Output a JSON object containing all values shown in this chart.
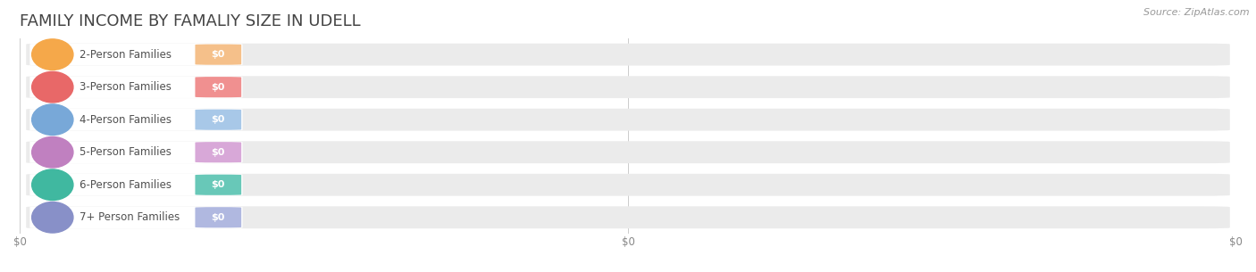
{
  "title": "FAMILY INCOME BY FAMALIY SIZE IN UDELL",
  "source": "Source: ZipAtlas.com",
  "categories": [
    "2-Person Families",
    "3-Person Families",
    "4-Person Families",
    "5-Person Families",
    "6-Person Families",
    "7+ Person Families"
  ],
  "values": [
    0,
    0,
    0,
    0,
    0,
    0
  ],
  "bar_colors": [
    "#f5c08a",
    "#f09090",
    "#a8c8e8",
    "#d8a8d8",
    "#68c8b8",
    "#b0b8e0"
  ],
  "dot_colors": [
    "#f5a84a",
    "#e86868",
    "#78a8d8",
    "#c080c0",
    "#40b8a0",
    "#8890c8"
  ],
  "bar_bg_color": "#ebebeb",
  "label_color": "#505050",
  "title_color": "#444444",
  "source_color": "#999999",
  "xlim_data": [
    0,
    1
  ],
  "bar_height": 0.68,
  "title_fontsize": 13,
  "label_fontsize": 8.5,
  "value_fontsize": 8,
  "source_fontsize": 8,
  "xtick_labels": [
    "$0",
    "$0",
    "$0"
  ],
  "xtick_positions": [
    0.0,
    0.5,
    1.0
  ],
  "n_bars": 6
}
